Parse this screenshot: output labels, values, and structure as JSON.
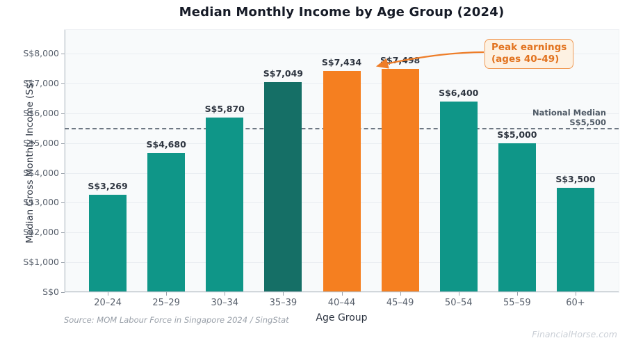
{
  "title": "Median Monthly Income by Age Group (2024)",
  "chart_data": {
    "type": "bar",
    "categories": [
      "20–24",
      "25–29",
      "30–34",
      "35–39",
      "40–44",
      "45–49",
      "50–54",
      "55–59",
      "60+"
    ],
    "values": [
      3269,
      4680,
      5870,
      7049,
      7434,
      7498,
      6400,
      5000,
      3500
    ],
    "bar_labels": [
      "S$3,269",
      "S$4,680",
      "S$5,870",
      "S$7,049",
      "S$7,434",
      "S$7,498",
      "S$6,400",
      "S$5,000",
      "S$3,500"
    ],
    "bar_colors": [
      "#0f9688",
      "#0f9688",
      "#0f9688",
      "#156f66",
      "#f57f20",
      "#f57f20",
      "#0f9688",
      "#0f9688",
      "#0f9688"
    ],
    "title": "Median Monthly Income by Age Group (2024)",
    "xlabel": "Age Group",
    "ylabel": "Median Gross Monthly Income (S$)",
    "ylim": [
      0,
      8800
    ],
    "grid": true,
    "legend": "none",
    "ytick_values": [
      0,
      1000,
      2000,
      3000,
      4000,
      5000,
      6000,
      7000,
      8000
    ],
    "ytick_labels": [
      "S$0",
      "S$1,000",
      "S$2,000",
      "S$3,000",
      "S$4,000",
      "S$5,000",
      "S$6,000",
      "S$7,000",
      "S$8,000"
    ],
    "reference_line": {
      "value": 5500,
      "label_line1": "National Median",
      "label_line2": "S$5,500",
      "color": "#6e7883"
    },
    "annotation": {
      "text_line1": "Peak earnings",
      "text_line2": "(ages 40–49)",
      "target_category": "40–44",
      "color": "#e2731f"
    }
  },
  "colors": {
    "bar_teal": "#0f9688",
    "bar_dark_teal": "#156f66",
    "bar_orange": "#f57f20",
    "annotation_orange": "#ee7d28",
    "plot_background": "#f8fafb"
  },
  "source_note": "Source: MOM Labour Force in Singapore 2024 / SingStat",
  "watermark": "FinancialHorse.com"
}
